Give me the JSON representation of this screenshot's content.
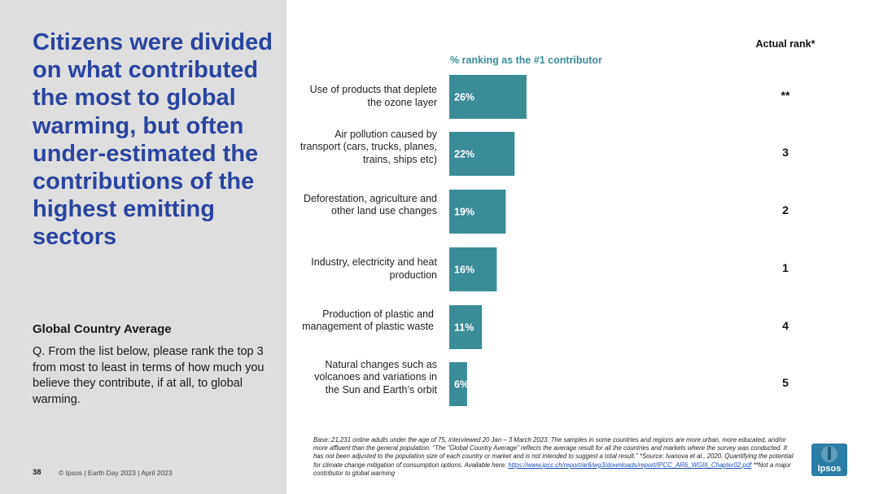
{
  "headline": "Citizens were divided on what contributed the most to global warming, but often under-estimated the contributions of the highest emitting sectors",
  "subtitle": "Global Country Average",
  "question": "Q. From the list below, please rank the top 3 from most to least in terms of how much you believe they contribute, if at all, to global warming.",
  "footer": {
    "page": "38",
    "text": "© Ipsos | Earth Day 2023 | April 2023"
  },
  "base_note": {
    "text": "Base: 21,231 online adults under the age of 75, interviewed 20 Jan – 3 March 2023. The samples in some countries and regions are more urban, more educated, and/or more affluent than the general population. “The “Global Country Average” reflects the average result for all the countries and markets where the survey was conducted. It has not been adjusted to the population size of each country or market and is not intended to suggest a total result.” *Source: Ivanova et al., 2020. Quantifying the potential for climate change mitigation of consumption options. Available here:",
    "link": "https://www.ipcc.ch/report/ar6/wg3/downloads/report/IPCC_AR6_WGIII_Chapter02.pdf",
    "suffix": "**Not a major contributor to global warming"
  },
  "logo": {
    "text": "Ipsos",
    "color": "#2b7ea6"
  },
  "chart_data": {
    "type": "bar",
    "orientation": "horizontal",
    "title": "% ranking as the #1 contributor",
    "rank_header": "Actual rank*",
    "bar_color": "#3a8c96",
    "categories": [
      "Use of products that deplete the ozone layer",
      "Air pollution caused by transport (cars, trucks, planes, trains, ships etc)",
      "Deforestation, agriculture and other land use changes",
      "Industry, electricity and heat production",
      "Production of plastic and management of plastic waste",
      "Natural changes such as volcanoes and variations in the Sun and Earth’s orbit"
    ],
    "values": [
      26,
      22,
      19,
      16,
      11,
      6
    ],
    "data_labels": [
      "26%",
      "22%",
      "19%",
      "16%",
      "11%",
      "6%"
    ],
    "actual_ranks": [
      "**",
      "3",
      "2",
      "1",
      "4",
      "5"
    ],
    "xlim": [
      0,
      100
    ]
  }
}
